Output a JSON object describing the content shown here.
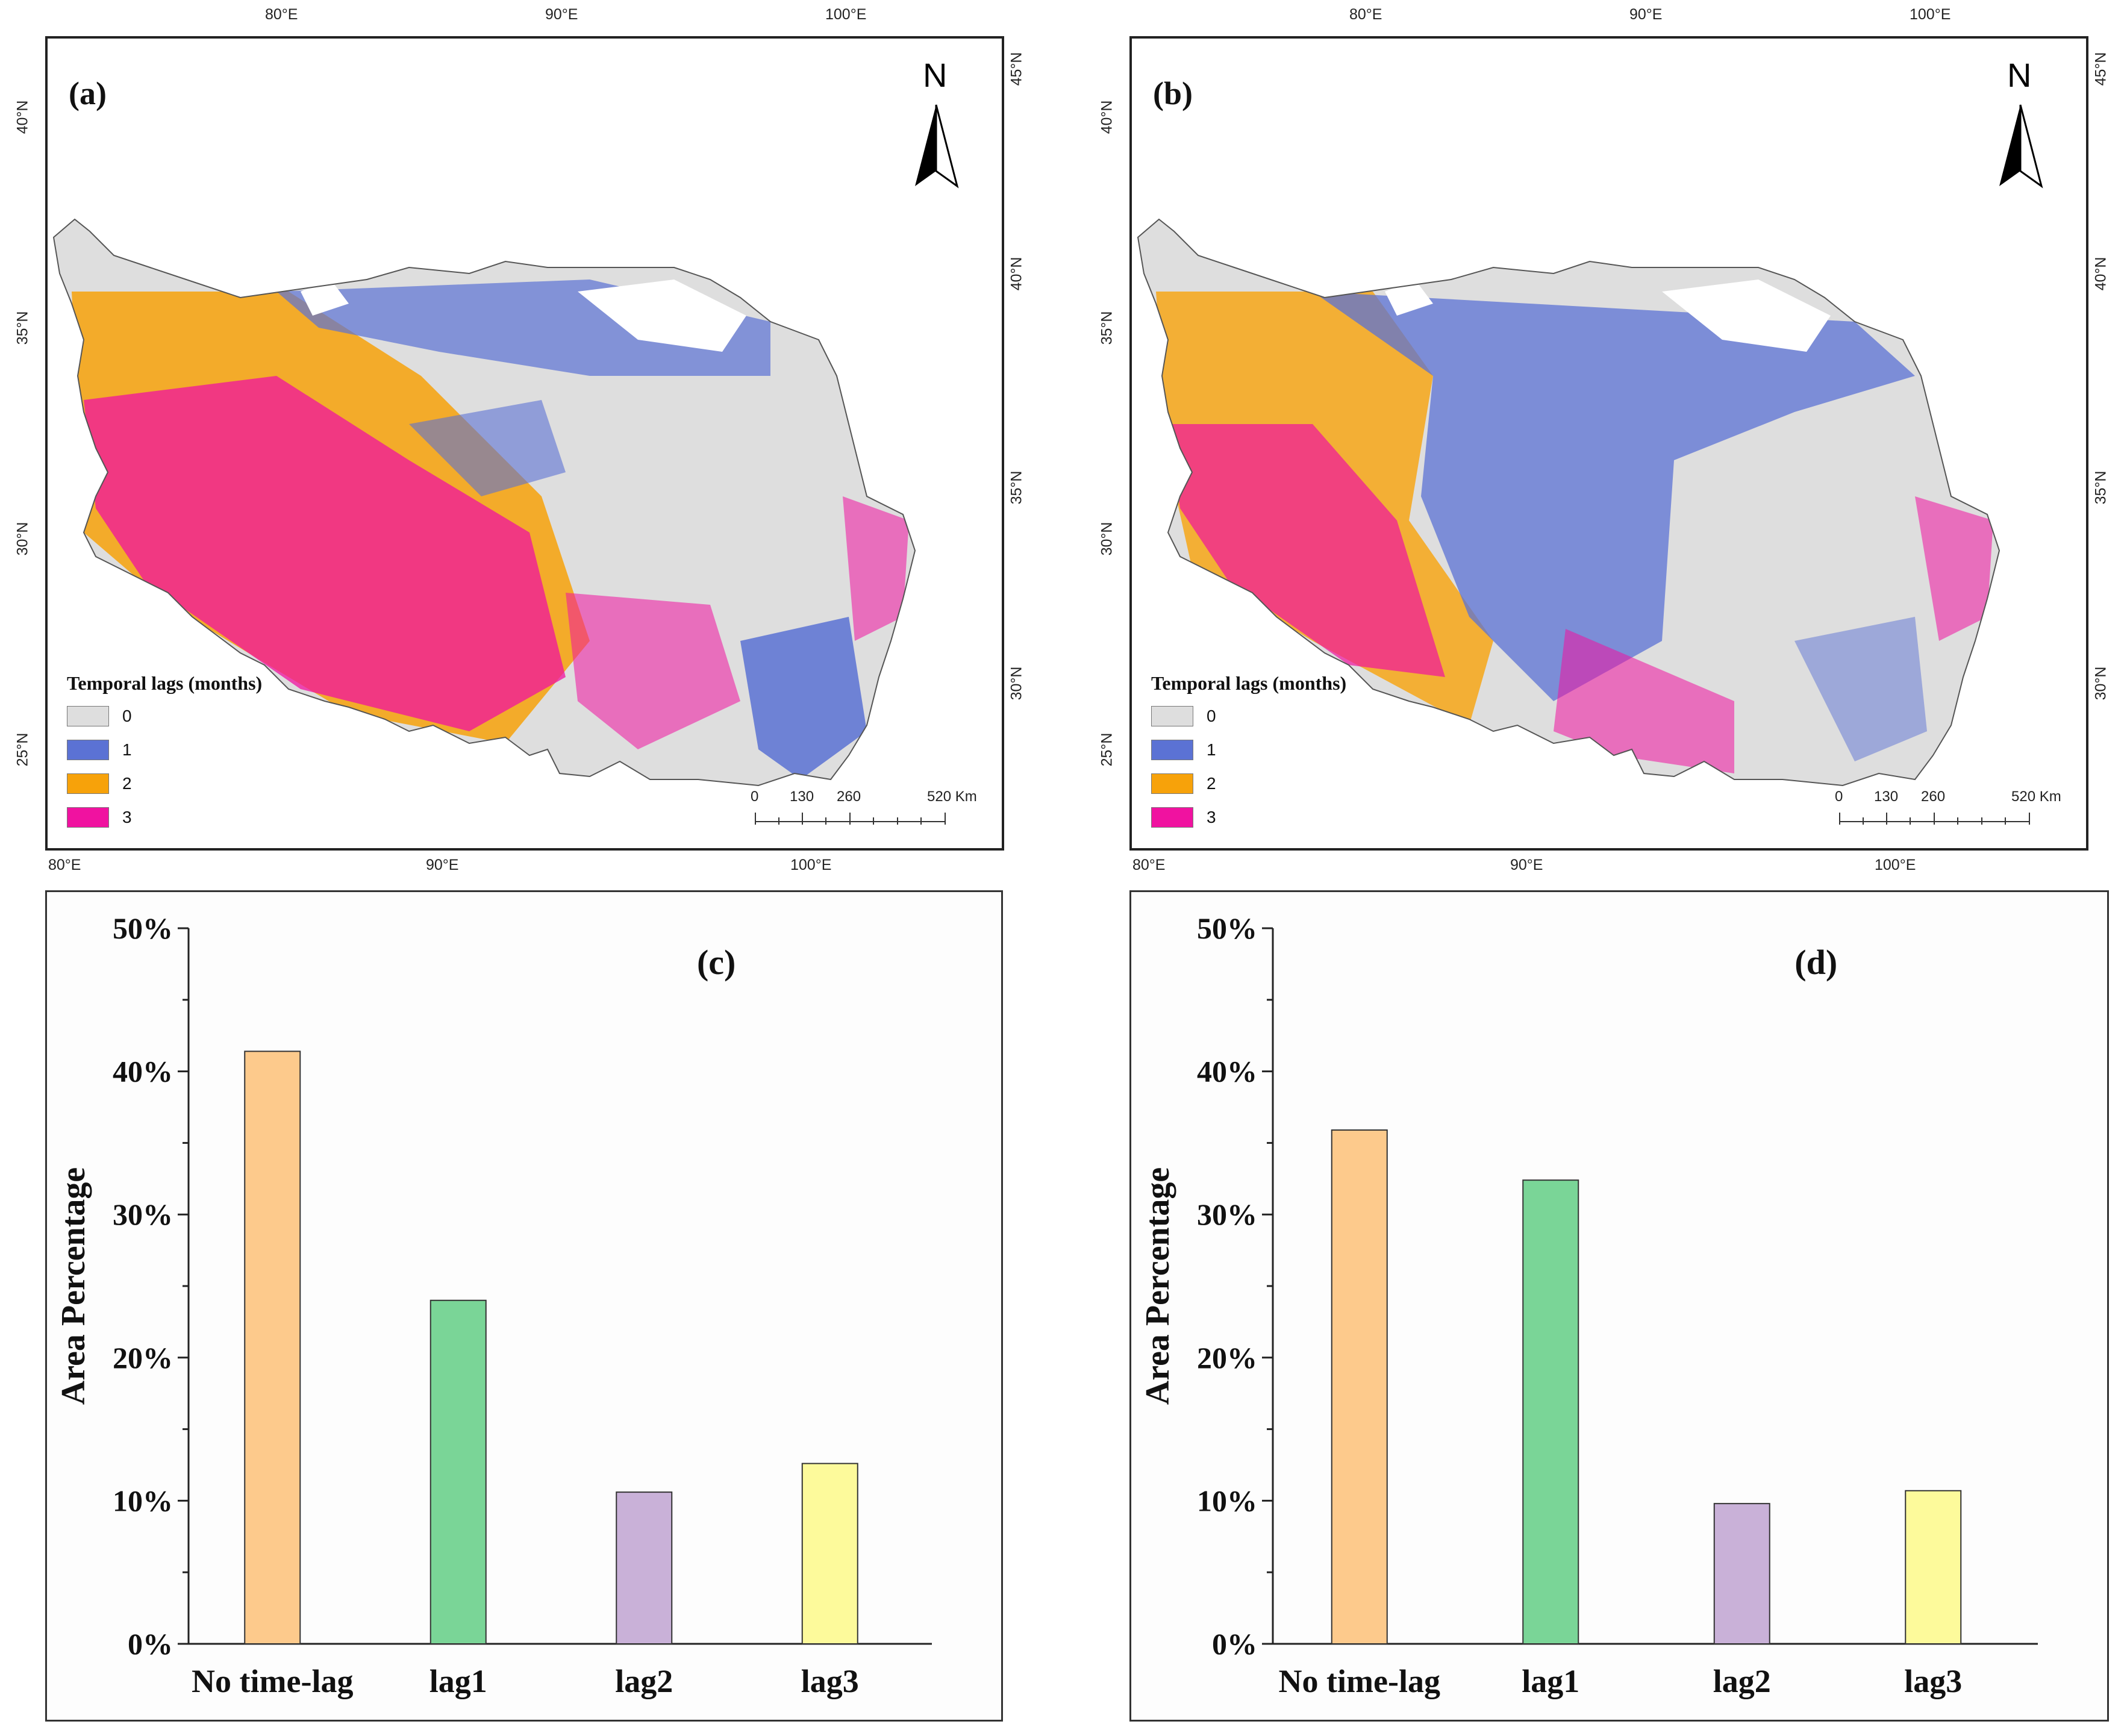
{
  "maps": [
    {
      "label": "(a)",
      "north": "N",
      "top_lon_ticks": [
        "80°E",
        "90°E",
        "100°E"
      ],
      "bottom_lon_ticks": [
        "80°E",
        "90°E",
        "100°E"
      ],
      "left_lat_ticks": [
        "40°N",
        "35°N",
        "30°N",
        "25°N"
      ],
      "right_lat_ticks": [
        "45°N",
        "40°N",
        "35°N",
        "30°N"
      ],
      "legend_title": "Temporal lags (months)",
      "legend": [
        {
          "value": "0",
          "color": "#dedede"
        },
        {
          "value": "1",
          "color": "#5b72d4"
        },
        {
          "value": "2",
          "color": "#f7a20a"
        },
        {
          "value": "3",
          "color": "#f012a0"
        }
      ],
      "scale_labels": [
        "0",
        "130",
        "260",
        "520 Km"
      ]
    },
    {
      "label": "(b)",
      "north": "N",
      "top_lon_ticks": [
        "80°E",
        "90°E",
        "100°E"
      ],
      "bottom_lon_ticks": [
        "80°E",
        "90°E",
        "100°E"
      ],
      "left_lat_ticks": [
        "40°N",
        "35°N",
        "30°N",
        "25°N"
      ],
      "right_lat_ticks": [
        "45°N",
        "40°N",
        "35°N",
        "30°N"
      ],
      "legend_title": "Temporal lags (months)",
      "legend": [
        {
          "value": "0",
          "color": "#dedede"
        },
        {
          "value": "1",
          "color": "#5b72d4"
        },
        {
          "value": "2",
          "color": "#f7a20a"
        },
        {
          "value": "3",
          "color": "#f012a0"
        }
      ],
      "scale_labels": [
        "0",
        "130",
        "260",
        "520 Km"
      ]
    }
  ],
  "chart_data": [
    {
      "type": "bar",
      "panel_label": "(c)",
      "categories": [
        "No time-lag",
        "lag1",
        "lag2",
        "lag3"
      ],
      "values": [
        41.4,
        24.0,
        10.6,
        12.6
      ],
      "colors": [
        "#fdca8c",
        "#7ad597",
        "#c9b1d8",
        "#fdfa9b"
      ],
      "ylabel": "Area Percentage",
      "ylim": [
        0,
        50
      ],
      "yticks": [
        "0%",
        "10%",
        "20%",
        "30%",
        "40%",
        "50%"
      ]
    },
    {
      "type": "bar",
      "panel_label": "(d)",
      "categories": [
        "No time-lag",
        "lag1",
        "lag2",
        "lag3"
      ],
      "values": [
        35.9,
        32.4,
        9.8,
        10.7
      ],
      "colors": [
        "#fdca8c",
        "#7ad597",
        "#c9b1d8",
        "#fdfa9b"
      ],
      "ylabel": "Area Percentage",
      "ylim": [
        0,
        50
      ],
      "yticks": [
        "0%",
        "10%",
        "20%",
        "30%",
        "40%",
        "50%"
      ]
    }
  ]
}
